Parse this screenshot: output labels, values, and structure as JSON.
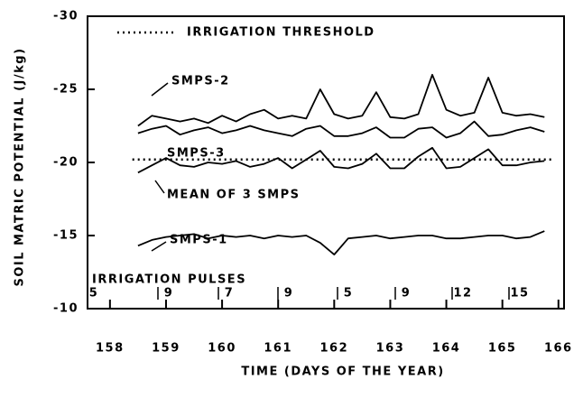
{
  "chart_data": {
    "type": "line",
    "xlabel": "TIME (DAYS OF THE YEAR)",
    "ylabel": "SOIL MATRIC POTENTIAL (J/kg)",
    "xlim": [
      157.6,
      166.1
    ],
    "xticks": [
      158,
      159,
      160,
      161,
      162,
      163,
      164,
      165,
      166
    ],
    "ylim": [
      -10,
      -30
    ],
    "yticks": [
      -30,
      -25,
      -20,
      -15,
      -10
    ],
    "grid": false,
    "annotations": {
      "pulses_title": "IRRIGATION PULSES",
      "pulses": [
        "5",
        "9",
        "7",
        "9",
        "5",
        "9",
        "12",
        "15"
      ]
    },
    "series": [
      {
        "name": "IRRIGATION THRESHOLD",
        "color": "#000000",
        "dash": true,
        "x": [
          158.4,
          165.9
        ],
        "values": [
          -20.2,
          -20.2
        ]
      },
      {
        "name": "SMPS-2",
        "color": "#000000",
        "x": [
          158.5,
          158.75,
          159,
          159.25,
          159.5,
          159.75,
          160,
          160.25,
          160.5,
          160.75,
          161,
          161.25,
          161.5,
          161.75,
          162,
          162.25,
          162.5,
          162.75,
          163,
          163.25,
          163.5,
          163.75,
          164,
          164.25,
          164.5,
          164.75,
          165,
          165.25,
          165.5,
          165.75
        ],
        "values": [
          -22.5,
          -23.2,
          -23,
          -22.8,
          -23,
          -22.7,
          -23.2,
          -22.8,
          -23.3,
          -23.6,
          -23,
          -23.2,
          -23,
          -25,
          -23.3,
          -23,
          -23.2,
          -24.8,
          -23.1,
          -23,
          -23.3,
          -26,
          -23.6,
          -23.2,
          -23.4,
          -25.8,
          -23.4,
          -23.2,
          -23.3,
          -23.1
        ]
      },
      {
        "name": "SMPS-3",
        "color": "#000000",
        "x": [
          158.5,
          158.75,
          159,
          159.25,
          159.5,
          159.75,
          160,
          160.25,
          160.5,
          160.75,
          161,
          161.25,
          161.5,
          161.75,
          162,
          162.25,
          162.5,
          162.75,
          163,
          163.25,
          163.5,
          163.75,
          164,
          164.25,
          164.5,
          164.75,
          165,
          165.25,
          165.5,
          165.75
        ],
        "values": [
          -22,
          -22.3,
          -22.5,
          -21.9,
          -22.2,
          -22.4,
          -22,
          -22.2,
          -22.5,
          -22.2,
          -22,
          -21.8,
          -22.3,
          -22.5,
          -21.8,
          -21.8,
          -22,
          -22.4,
          -21.7,
          -21.7,
          -22.3,
          -22.4,
          -21.7,
          -22,
          -22.8,
          -21.8,
          -21.9,
          -22.2,
          -22.4,
          -22.1
        ]
      },
      {
        "name": "MEAN OF  3 SMPS",
        "color": "#000000",
        "x": [
          158.5,
          158.75,
          159,
          159.25,
          159.5,
          159.75,
          160,
          160.25,
          160.5,
          160.75,
          161,
          161.25,
          161.5,
          161.75,
          162,
          162.25,
          162.5,
          162.75,
          163,
          163.25,
          163.5,
          163.75,
          164,
          164.25,
          164.5,
          164.75,
          165,
          165.25,
          165.5,
          165.75
        ],
        "values": [
          -19.3,
          -19.8,
          -20.3,
          -19.8,
          -19.7,
          -20,
          -19.9,
          -20.1,
          -19.7,
          -19.9,
          -20.3,
          -19.6,
          -20.2,
          -20.8,
          -19.7,
          -19.6,
          -19.9,
          -20.6,
          -19.6,
          -19.6,
          -20.4,
          -21,
          -19.6,
          -19.7,
          -20.3,
          -20.9,
          -19.8,
          -19.8,
          -20,
          -20.1
        ]
      },
      {
        "name": "SMPS-1",
        "color": "#000000",
        "x": [
          158.5,
          158.75,
          159,
          159.25,
          159.5,
          159.75,
          160,
          160.25,
          160.5,
          160.75,
          161,
          161.25,
          161.5,
          161.75,
          162,
          162.25,
          162.5,
          162.75,
          163,
          163.25,
          163.5,
          163.75,
          164,
          164.25,
          164.5,
          164.75,
          165,
          165.25,
          165.5,
          165.75
        ],
        "values": [
          -14.3,
          -14.7,
          -14.9,
          -15,
          -15.1,
          -14.8,
          -15,
          -14.9,
          -15,
          -14.8,
          -15,
          -14.9,
          -15,
          -14.5,
          -13.7,
          -14.8,
          -14.9,
          -15,
          -14.8,
          -14.9,
          -15,
          -15,
          -14.8,
          -14.8,
          -14.9,
          -15,
          -15,
          -14.8,
          -14.9,
          -15.3
        ]
      }
    ]
  }
}
